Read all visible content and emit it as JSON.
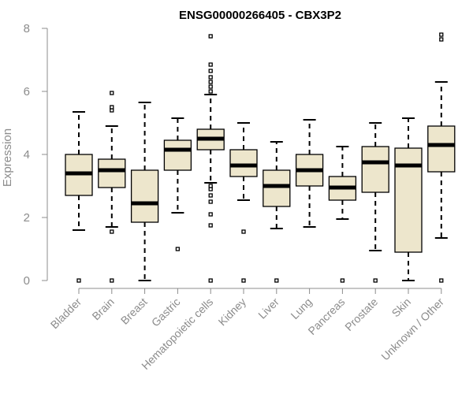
{
  "chart_data": {
    "type": "boxplot",
    "title": "ENSG00000266405 - CBX3P2",
    "xlabel": "",
    "ylabel": "Expression",
    "ylim": [
      0,
      8
    ],
    "yticks": [
      0,
      2,
      4,
      6,
      8
    ],
    "grid": false,
    "categories": [
      "Bladder",
      "Brain",
      "Breast",
      "Gastric",
      "Hematopoietic cells",
      "Kidney",
      "Liver",
      "Lung",
      "Pancreas",
      "Prostate",
      "Skin",
      "Unknown / Other"
    ],
    "boxes": [
      {
        "name": "Bladder",
        "whisker_low": 1.6,
        "q1": 2.7,
        "median": 3.4,
        "q3": 4.0,
        "whisker_high": 5.35,
        "outliers": [
          0.0
        ]
      },
      {
        "name": "Brain",
        "whisker_low": 1.7,
        "q1": 2.95,
        "median": 3.5,
        "q3": 3.85,
        "whisker_high": 4.9,
        "outliers": [
          0.0,
          1.55,
          5.4,
          5.5,
          5.95
        ]
      },
      {
        "name": "Breast",
        "whisker_low": 0.0,
        "q1": 1.85,
        "median": 2.45,
        "q3": 3.5,
        "whisker_high": 5.65,
        "outliers": []
      },
      {
        "name": "Gastric",
        "whisker_low": 2.15,
        "q1": 3.5,
        "median": 4.15,
        "q3": 4.45,
        "whisker_high": 5.15,
        "outliers": [
          1.0
        ]
      },
      {
        "name": "Hematopoietic cells",
        "whisker_low": 3.1,
        "q1": 4.15,
        "median": 4.5,
        "q3": 4.8,
        "whisker_high": 5.9,
        "outliers": [
          0.0,
          1.75,
          2.1,
          2.5,
          2.7,
          2.9,
          3.0,
          6.0,
          6.15,
          6.3,
          6.45,
          6.65,
          6.85,
          7.75
        ]
      },
      {
        "name": "Kidney",
        "whisker_low": 2.55,
        "q1": 3.3,
        "median": 3.65,
        "q3": 4.15,
        "whisker_high": 5.0,
        "outliers": [
          0.0,
          1.55
        ]
      },
      {
        "name": "Liver",
        "whisker_low": 1.65,
        "q1": 2.35,
        "median": 3.0,
        "q3": 3.5,
        "whisker_high": 4.4,
        "outliers": [
          0.0
        ]
      },
      {
        "name": "Lung",
        "whisker_low": 1.7,
        "q1": 3.0,
        "median": 3.5,
        "q3": 4.0,
        "whisker_high": 5.1,
        "outliers": []
      },
      {
        "name": "Pancreas",
        "whisker_low": 1.95,
        "q1": 2.55,
        "median": 2.95,
        "q3": 3.3,
        "whisker_high": 4.25,
        "outliers": [
          0.0
        ]
      },
      {
        "name": "Prostate",
        "whisker_low": 0.95,
        "q1": 2.8,
        "median": 3.75,
        "q3": 4.25,
        "whisker_high": 5.0,
        "outliers": [
          0.0
        ]
      },
      {
        "name": "Skin",
        "whisker_low": 0.0,
        "q1": 0.9,
        "median": 3.65,
        "q3": 4.2,
        "whisker_high": 5.15,
        "outliers": []
      },
      {
        "name": "Unknown / Other",
        "whisker_low": 1.35,
        "q1": 3.45,
        "median": 4.3,
        "q3": 4.9,
        "whisker_high": 6.3,
        "outliers": [
          0.0,
          7.65,
          7.8
        ]
      }
    ],
    "colors": {
      "box_fill": "#ede6cc",
      "box_stroke": "#000000",
      "axis": "#8c8c8c"
    }
  }
}
